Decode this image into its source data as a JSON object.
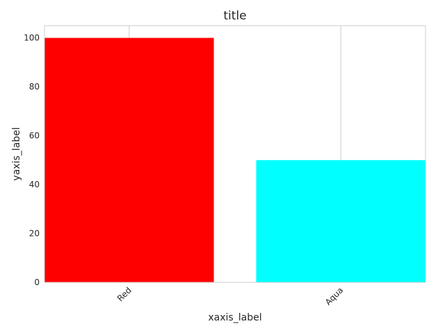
{
  "chart_data": {
    "type": "bar",
    "title": "title",
    "xlabel": "xaxis_label",
    "ylabel": "yaxis_label",
    "categories": [
      "Red",
      "Aqua"
    ],
    "values": [
      100,
      50
    ],
    "colors": [
      "#ff0000",
      "#00ffff"
    ],
    "ylim": [
      0,
      105
    ],
    "yticks": [
      "0",
      "20",
      "40",
      "60",
      "80",
      "100"
    ],
    "grid": "x-only",
    "legend": "none",
    "x_tick_rotation": 45
  }
}
